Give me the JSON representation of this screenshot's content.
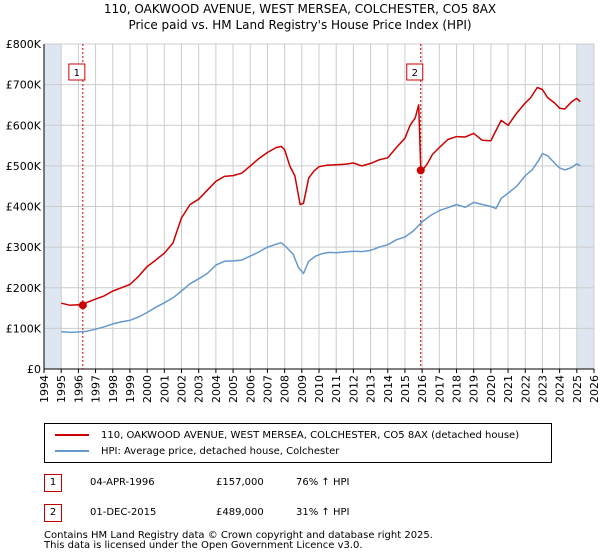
{
  "title_line1": "110, OAKWOOD AVENUE, WEST MERSEA, COLCHESTER, CO5 8AX",
  "title_line2": "Price paid vs. HM Land Registry's House Price Index (HPI)",
  "colors": {
    "price": "#cc0000",
    "hpi": "#6699cc",
    "shade": "#dde6f1",
    "grid": "#cccccc"
  },
  "chart_data": {
    "type": "line",
    "xlim": [
      1994,
      2026
    ],
    "ylim": [
      0,
      800000
    ],
    "y_ticks": [
      {
        "value": 0,
        "label": "£0"
      },
      {
        "value": 100000,
        "label": "£100K"
      },
      {
        "value": 200000,
        "label": "£200K"
      },
      {
        "value": 300000,
        "label": "£300K"
      },
      {
        "value": 400000,
        "label": "£400K"
      },
      {
        "value": 500000,
        "label": "£500K"
      },
      {
        "value": 600000,
        "label": "£600K"
      },
      {
        "value": 700000,
        "label": "£700K"
      },
      {
        "value": 800000,
        "label": "£800K"
      }
    ],
    "x_ticks": [
      "1994",
      "1995",
      "1996",
      "1997",
      "1998",
      "1999",
      "2000",
      "2001",
      "2002",
      "2003",
      "2004",
      "2005",
      "2006",
      "2007",
      "2008",
      "2009",
      "2010",
      "2011",
      "2012",
      "2013",
      "2014",
      "2015",
      "2016",
      "2017",
      "2018",
      "2019",
      "2020",
      "2021",
      "2022",
      "2023",
      "2024",
      "2025",
      "2026"
    ],
    "shaded_ranges": [
      [
        1994,
        1995
      ],
      [
        2025,
        2026
      ]
    ],
    "series": [
      {
        "name": "110, OAKWOOD AVENUE, WEST MERSEA, COLCHESTER, CO5 8AX (detached house)",
        "key": "price",
        "x": [
          1995.0,
          1995.5,
          1996.0,
          1996.26,
          1996.5,
          1997.0,
          1997.5,
          1998.0,
          1998.5,
          1999.0,
          1999.5,
          2000.0,
          2000.5,
          2001.0,
          2001.5,
          2002.0,
          2002.5,
          2003.0,
          2003.5,
          2004.0,
          2004.5,
          2005.0,
          2005.5,
          2006.0,
          2006.5,
          2007.0,
          2007.5,
          2007.8,
          2008.0,
          2008.3,
          2008.6,
          2008.9,
          2009.1,
          2009.4,
          2009.7,
          2010.0,
          2010.5,
          2011.0,
          2011.5,
          2012.0,
          2012.5,
          2013.0,
          2013.5,
          2014.0,
          2014.5,
          2015.0,
          2015.3,
          2015.6,
          2015.8,
          2015.92,
          2016.0,
          2016.3,
          2016.6,
          2017.0,
          2017.5,
          2018.0,
          2018.5,
          2019.0,
          2019.5,
          2020.0,
          2020.3,
          2020.6,
          2021.0,
          2021.5,
          2022.0,
          2022.3,
          2022.7,
          2023.0,
          2023.3,
          2023.7,
          2024.0,
          2024.3,
          2024.7,
          2025.0,
          2025.2
        ],
        "y": [
          162000,
          157000,
          158000,
          157000,
          164000,
          172000,
          180000,
          192000,
          200000,
          208000,
          228000,
          252000,
          268000,
          285000,
          310000,
          372000,
          405000,
          418000,
          440000,
          462000,
          474000,
          476000,
          482000,
          500000,
          518000,
          533000,
          545000,
          548000,
          540000,
          500000,
          475000,
          405000,
          408000,
          470000,
          487000,
          498000,
          502000,
          503000,
          504000,
          507000,
          500000,
          506000,
          515000,
          520000,
          545000,
          568000,
          600000,
          618000,
          650000,
          489000,
          488000,
          505000,
          528000,
          545000,
          565000,
          572000,
          571000,
          580000,
          563000,
          562000,
          587000,
          612000,
          600000,
          630000,
          655000,
          667000,
          693000,
          688000,
          668000,
          655000,
          642000,
          640000,
          658000,
          666000,
          658000
        ]
      },
      {
        "name": "HPI: Average price, detached house, Colchester",
        "key": "hpi",
        "x": [
          1995.0,
          1995.5,
          1996.0,
          1996.5,
          1997.0,
          1997.5,
          1998.0,
          1998.5,
          1999.0,
          1999.5,
          2000.0,
          2000.5,
          2001.0,
          2001.5,
          2002.0,
          2002.5,
          2003.0,
          2003.5,
          2004.0,
          2004.5,
          2005.0,
          2005.5,
          2006.0,
          2006.5,
          2007.0,
          2007.5,
          2007.8,
          2008.1,
          2008.5,
          2008.8,
          2009.1,
          2009.4,
          2009.8,
          2010.2,
          2010.6,
          2011.0,
          2011.5,
          2012.0,
          2012.5,
          2013.0,
          2013.5,
          2014.0,
          2014.5,
          2015.0,
          2015.5,
          2016.0,
          2016.5,
          2017.0,
          2017.5,
          2018.0,
          2018.5,
          2019.0,
          2019.5,
          2020.0,
          2020.3,
          2020.6,
          2021.0,
          2021.5,
          2022.0,
          2022.4,
          2022.8,
          2023.0,
          2023.3,
          2023.7,
          2024.0,
          2024.3,
          2024.7,
          2025.0,
          2025.2
        ],
        "y": [
          92000,
          90000,
          91000,
          93000,
          98000,
          104000,
          111000,
          116000,
          120000,
          128000,
          139000,
          152000,
          163000,
          175000,
          192000,
          210000,
          222000,
          235000,
          256000,
          265000,
          266000,
          268000,
          278000,
          288000,
          300000,
          307000,
          311000,
          300000,
          282000,
          250000,
          235000,
          265000,
          278000,
          284000,
          287000,
          286000,
          288000,
          290000,
          289000,
          292000,
          300000,
          306000,
          318000,
          325000,
          340000,
          362000,
          378000,
          390000,
          397000,
          405000,
          398000,
          410000,
          405000,
          400000,
          395000,
          420000,
          433000,
          450000,
          476000,
          490000,
          515000,
          530000,
          525000,
          507000,
          495000,
          490000,
          496000,
          505000,
          500000
        ]
      }
    ],
    "markers": [
      {
        "label": "1",
        "x": 1996.26,
        "y": 157000
      },
      {
        "label": "2",
        "x": 2015.92,
        "y": 489000
      }
    ]
  },
  "legend": {
    "price_label": "110, OAKWOOD AVENUE, WEST MERSEA, COLCHESTER, CO5 8AX (detached house)",
    "hpi_label": "HPI: Average price, detached house, Colchester"
  },
  "sales": [
    {
      "num": "1",
      "date": "04-APR-1996",
      "price": "£157,000",
      "hpi": "76% ↑ HPI"
    },
    {
      "num": "2",
      "date": "01-DEC-2015",
      "price": "£489,000",
      "hpi": "31% ↑ HPI"
    }
  ],
  "footer_line1": "Contains HM Land Registry data © Crown copyright and database right 2025.",
  "footer_line2": "This data is licensed under the Open Government Licence v3.0."
}
